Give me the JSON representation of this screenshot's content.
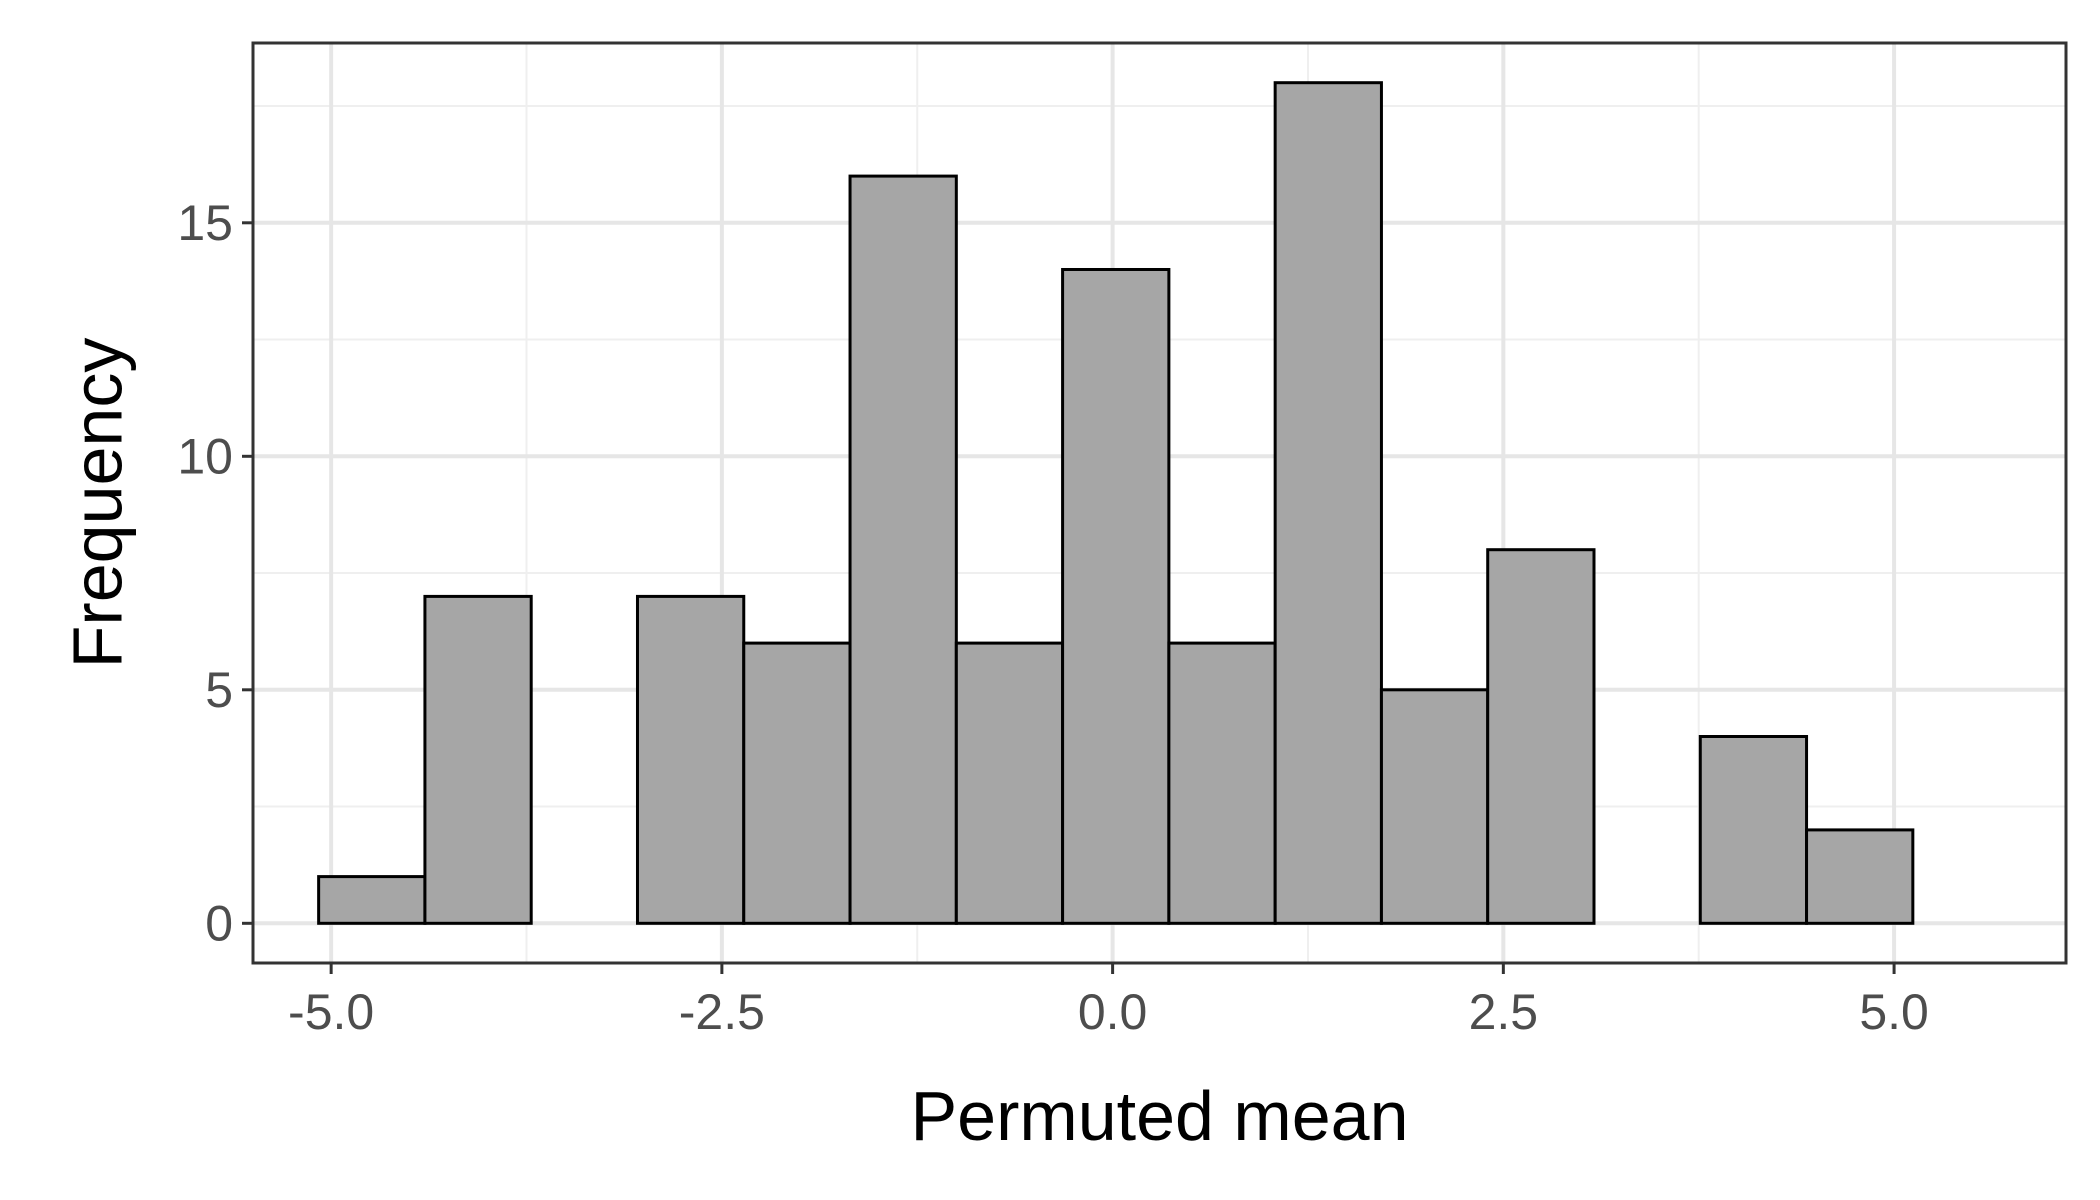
{
  "chart_data": {
    "type": "bar",
    "subtype": "histogram",
    "title": "",
    "xlabel": "Permuted mean",
    "ylabel": "Frequency",
    "xlim": [
      -5.5,
      6.1
    ],
    "ylim": [
      -0.85,
      18.85
    ],
    "bin_width": 0.68,
    "bins": [
      {
        "start": -5.08,
        "end": -4.4,
        "count": 1
      },
      {
        "start": -4.4,
        "end": -3.72,
        "count": 7
      },
      {
        "start": -3.72,
        "end": -3.04,
        "count": 0
      },
      {
        "start": -3.04,
        "end": -2.36,
        "count": 7
      },
      {
        "start": -2.36,
        "end": -1.68,
        "count": 6
      },
      {
        "start": -1.68,
        "end": -1.0,
        "count": 16
      },
      {
        "start": -1.0,
        "end": -0.32,
        "count": 6
      },
      {
        "start": -0.32,
        "end": 0.36,
        "count": 14
      },
      {
        "start": 0.36,
        "end": 1.04,
        "count": 6
      },
      {
        "start": 1.04,
        "end": 1.72,
        "count": 18
      },
      {
        "start": 1.72,
        "end": 2.4,
        "count": 5
      },
      {
        "start": 2.4,
        "end": 3.08,
        "count": 8
      },
      {
        "start": 3.08,
        "end": 3.76,
        "count": 0
      },
      {
        "start": 3.76,
        "end": 4.44,
        "count": 4
      },
      {
        "start": 4.44,
        "end": 5.12,
        "count": 2
      }
    ],
    "x_ticks": [
      -5.0,
      -2.5,
      0.0,
      2.5,
      5.0
    ],
    "x_tick_labels": [
      "-5.0",
      "-2.5",
      "0.0",
      "2.5",
      "5.0"
    ],
    "x_minor_ticks": [
      -3.75,
      -1.25,
      1.25,
      3.75
    ],
    "y_ticks": [
      0,
      5,
      10,
      15
    ],
    "y_tick_labels": [
      "0",
      "5",
      "10",
      "15"
    ],
    "y_minor_ticks": [
      2.5,
      7.5,
      12.5,
      17.5
    ],
    "grid": true,
    "legend": "none",
    "colors": {
      "bar_fill": "#a6a6a6",
      "bar_stroke": "#000000",
      "grid_major": "#e6e6e6",
      "grid_minor": "#efefef",
      "panel_border": "#333333",
      "tick_label": "#4d4d4d",
      "axis_title": "#000000"
    }
  }
}
